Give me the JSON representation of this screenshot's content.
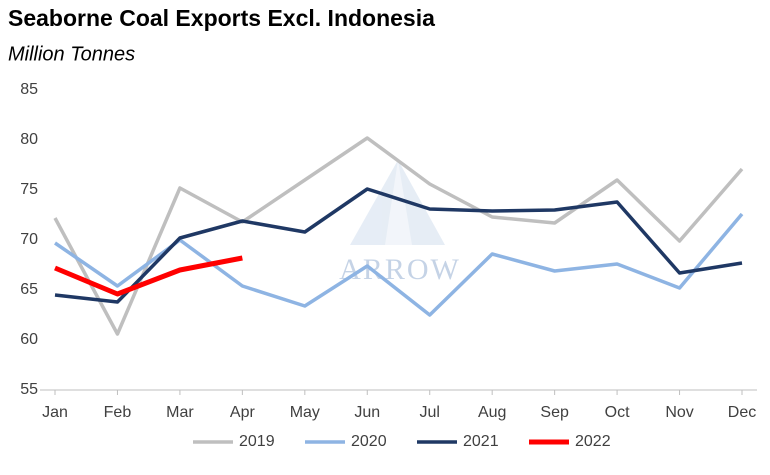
{
  "chart_data": {
    "type": "line",
    "title": "Seaborne Coal Exports Excl. Indonesia",
    "subtitle": "Million Tonnes",
    "watermark": "ARROW",
    "categories": [
      "Jan",
      "Feb",
      "Mar",
      "Apr",
      "May",
      "Jun",
      "Jul",
      "Aug",
      "Sep",
      "Oct",
      "Nov",
      "Dec"
    ],
    "series": [
      {
        "name": "2019",
        "color": "#bfbfbf",
        "values": [
          72.2,
          60.6,
          75.2,
          71.8,
          76.0,
          80.2,
          75.6,
          72.3,
          71.7,
          76.0,
          69.9,
          77.1
        ]
      },
      {
        "name": "2020",
        "color": "#8eb4e3",
        "values": [
          69.7,
          65.4,
          70.0,
          65.4,
          63.4,
          67.4,
          62.5,
          68.6,
          66.9,
          67.6,
          65.2,
          72.6
        ]
      },
      {
        "name": "2021",
        "color": "#1f3864",
        "values": [
          64.5,
          63.8,
          70.2,
          71.9,
          70.8,
          75.1,
          73.1,
          72.9,
          73.0,
          73.8,
          66.7,
          67.7
        ]
      },
      {
        "name": "2022",
        "color": "#ff0000",
        "values": [
          67.2,
          64.6,
          67.0,
          68.2,
          null,
          null,
          null,
          null,
          null,
          null,
          null,
          null
        ]
      }
    ],
    "ylim": [
      55,
      85
    ],
    "yticks": [
      55,
      60,
      65,
      70,
      75,
      80,
      85
    ],
    "grid": false
  }
}
